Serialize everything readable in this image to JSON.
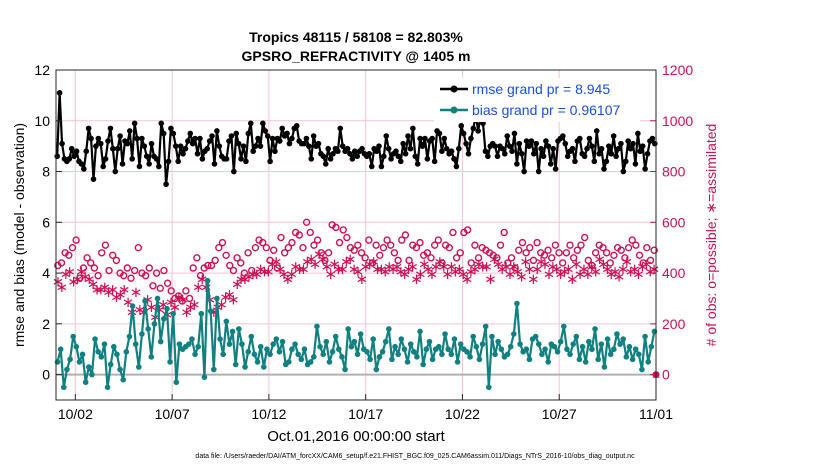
{
  "chart_data": {
    "type": "line",
    "title": "Tropics 48115 / 58108 = 82.803%",
    "subtitle": "GPSRO_REFRACTIVITY @ 1405 m",
    "xlabel": "Oct.01,2016 00:00:00 start",
    "ylabel": "rmse and bias (model - observation)",
    "ylabel_right": "# of obs: o=possible; ∗=assimilated",
    "xlim": [
      0,
      31
    ],
    "ylim": [
      -1,
      12
    ],
    "ylim_right": [
      -100,
      1200
    ],
    "yticks": [
      0,
      2,
      4,
      6,
      8,
      10,
      12
    ],
    "yticks_right": [
      0,
      200,
      400,
      600,
      800,
      1000,
      1200
    ],
    "xticks": [
      {
        "value": 1,
        "label": "10/02"
      },
      {
        "value": 6,
        "label": "10/07"
      },
      {
        "value": 11,
        "label": "10/12"
      },
      {
        "value": 16,
        "label": "10/17"
      },
      {
        "value": 21,
        "label": "10/22"
      },
      {
        "value": 26,
        "label": "10/27"
      },
      {
        "value": 31,
        "label": "11/01"
      }
    ],
    "step": 0.25,
    "series": [
      {
        "name": "rmse",
        "legend": "rmse grand pr = 8.945",
        "color": "#000000",
        "axis": "left",
        "values": [
          8.6,
          11.1,
          9.1,
          8.5,
          8.4,
          8.5,
          8.9,
          8.6,
          8.8,
          8.4,
          8.3,
          8.1,
          8.8,
          9.7,
          9.3,
          7.7,
          9.0,
          9.3,
          9.1,
          8.2,
          8.5,
          9.2,
          9.7,
          8.9,
          8.0,
          8.9,
          9.4,
          8.3,
          9.2,
          9.1,
          9.6,
          8.5,
          9.9,
          9.3,
          8.2,
          9.3,
          9.0,
          8.6,
          8.3,
          9.1,
          8.6,
          8.5,
          8.2,
          9.9,
          9.5,
          7.5,
          8.4,
          9.7,
          9.5,
          9.0,
          8.4,
          9.0,
          8.7,
          8.9,
          9.2,
          9.5,
          9.1,
          9.3,
          8.7,
          9.3,
          8.5,
          8.8,
          8.9,
          9.2,
          9.4,
          8.3,
          9.6,
          9.0,
          8.6,
          8.5,
          8.5,
          9.2,
          9.4,
          8.0,
          9.5,
          9.1,
          8.5,
          9.0,
          8.4,
          9.5,
          9.9,
          8.8,
          9.0,
          9.3,
          9.0,
          9.9,
          9.6,
          9.4,
          8.4,
          9.3,
          8.8,
          9.3,
          9.2,
          9.7,
          9.4,
          9.5,
          9.1,
          9.3,
          9.7,
          9.8,
          9.2,
          9.1,
          9.1,
          9.3,
          9.0,
          8.5,
          9.4,
          9.0,
          9.1,
          8.7,
          8.6,
          8.3,
          8.9,
          8.5,
          8.7,
          8.9,
          8.8,
          9.7,
          9.0,
          8.8,
          8.9,
          8.7,
          8.5,
          8.8,
          8.6,
          8.8,
          8.9,
          8.7,
          8.6,
          8.7,
          8.2,
          8.9,
          8.8,
          9.0,
          8.2,
          8.6,
          9.4,
          8.9,
          8.5,
          8.7,
          8.8,
          8.6,
          8.4,
          9.1,
          8.7,
          9.4,
          8.9,
          9.7,
          8.6,
          8.3,
          9.3,
          9.0,
          9.3,
          8.5,
          9.2,
          9.3,
          8.4,
          9.6,
          9.5,
          8.8,
          9.3,
          8.9,
          8.7,
          8.8,
          8.5,
          8.2,
          8.9,
          9.8,
          9.5,
          9.1,
          8.7,
          9.3,
          9.7,
          10.2,
          9.6,
          10.2,
          9.9,
          8.8,
          8.6,
          9.0,
          9.1,
          9.0,
          8.6,
          9.0,
          8.9,
          8.7,
          9.4,
          9.0,
          8.8,
          9.5,
          8.3,
          9.1,
          8.7,
          8.0,
          9.2,
          9.0,
          9.2,
          8.7,
          9.1,
          8.0,
          8.9,
          8.6,
          9.2,
          9.0,
          8.3,
          8.9,
          8.1,
          9.2,
          9.3,
          9.4,
          9.1,
          8.6,
          8.8,
          8.9,
          8.4,
          9.2,
          9.3,
          8.7,
          8.6,
          8.9,
          9.3,
          9.0,
          8.4,
          9.6,
          8.7,
          8.9,
          8.1,
          8.4,
          9.0,
          8.7,
          9.4,
          8.6,
          8.9,
          9.1,
          8.0,
          8.4,
          9.2,
          8.9,
          9.1,
          8.3,
          9.5,
          8.8,
          9.0,
          8.1,
          8.7,
          9.2,
          9.3,
          9.1
        ]
      },
      {
        "name": "bias",
        "legend": "bias grand pr = 0.96107",
        "color": "#108080",
        "axis": "left",
        "values": [
          0.5,
          1.0,
          -0.5,
          0.2,
          0.6,
          1.5,
          1.1,
          0.5,
          0.8,
          -0.3,
          0.3,
          0.0,
          1.4,
          0.9,
          0.7,
          1.2,
          -0.5,
          0.4,
          1.1,
          0.8,
          0.2,
          -0.2,
          0.9,
          1.5,
          2.7,
          1.2,
          0.3,
          1.6,
          2.9,
          1.8,
          0.7,
          2.0,
          3.0,
          1.3,
          2.2,
          2.6,
          0.5,
          2.4,
          -0.3,
          1.2,
          1.0,
          1.1,
          1.2,
          1.4,
          0.8,
          1.1,
          2.4,
          -0.1,
          3.7,
          2.5,
          0.2,
          3.0,
          1.4,
          0.8,
          2.1,
          1.2,
          1.7,
          0.4,
          1.8,
          1.2,
          0.3,
          0.9,
          1.5,
          0.8,
          0.5,
          1.1,
          0.3,
          1.0,
          0.8,
          1.2,
          1.4,
          0.9,
          1.3,
          0.4,
          0.5,
          1.0,
          1.2,
          0.8,
          0.6,
          1.0,
          0.4,
          0.5,
          0.7,
          1.9,
          1.1,
          0.8,
          1.3,
          0.5,
          0.9,
          1.5,
          1.0,
          0.7,
          0.2,
          1.8,
          1.1,
          1.3,
          0.8,
          1.6,
          1.0,
          0.9,
          0.6,
          1.4,
          0.2,
          0.7,
          0.9,
          1.3,
          1.8,
          0.6,
          1.1,
          0.8,
          1.4,
          1.0,
          0.5,
          1.2,
          0.9,
          0.7,
          1.7,
          0.4,
          1.0,
          1.3,
          0.6,
          1.0,
          1.1,
          0.8,
          1.6,
          1.0,
          0.8,
          1.4,
          0.5,
          1.2,
          1.0,
          0.9,
          0.7,
          1.5,
          1.1,
          0.6,
          1.2,
          1.9,
          -0.5,
          1.5,
          0.8,
          1.3,
          1.0,
          0.7,
          0.8,
          1.1,
          1.6,
          2.8,
          1.2,
          0.9,
          1.0,
          0.6,
          1.4,
          1.5,
          1.2,
          0.8,
          1.0,
          0.5,
          1.2,
          1.1,
          0.9,
          1.3,
          1.9,
          1.0,
          0.8,
          1.2,
          1.5,
          0.6,
          1.1,
          0.5,
          1.3,
          1.0,
          1.8,
          0.6,
          1.2,
          0.3,
          1.4,
          0.8,
          1.0,
          1.6,
          1.2,
          1.4,
          0.7,
          1.1,
          0.6,
          1.0,
          0.8,
          0.2,
          1.5,
          0.5,
          1.1,
          1.7
        ]
      },
      {
        "name": "possible",
        "legend": "",
        "color": "#cc1155",
        "axis": "right",
        "marker": "o",
        "values": [
          430,
          440,
          480,
          470,
          500,
          530,
          380,
          420,
          460,
          440,
          420,
          390,
          480,
          510,
          410,
          470,
          450,
          400,
          390,
          420,
          380,
          410,
          500,
          400,
          390,
          420,
          350,
          400,
          340,
          410,
          360,
          330,
          300,
          310,
          290,
          330,
          300,
          420,
          460,
          390,
          420,
          430,
          430,
          450,
          500,
          520,
          470,
          430,
          410,
          460,
          440,
          400,
          480,
          410,
          500,
          530,
          520,
          500,
          450,
          490,
          420,
          540,
          480,
          500,
          520,
          560,
          550,
          500,
          600,
          560,
          510,
          530,
          480,
          450,
          480,
          590,
          580,
          520,
          570,
          540,
          500,
          490,
          510,
          480,
          460,
          530,
          440,
          510,
          470,
          500,
          530,
          510,
          480,
          450,
          530,
          550,
          450,
          510,
          500,
          520,
          470,
          480,
          460,
          510,
          530,
          440,
          510,
          500,
          560,
          460,
          480,
          560,
          570,
          440,
          510,
          460,
          500,
          490,
          480,
          470,
          460,
          510,
          560,
          440,
          460,
          420,
          490,
          520,
          480,
          500,
          450,
          520,
          480,
          470,
          490,
          460,
          510,
          480,
          440,
          480,
          510,
          460,
          490,
          510,
          540,
          450,
          430,
          480,
          510,
          500,
          480,
          440,
          470,
          500,
          490,
          460,
          500,
          530,
          510,
          470,
          440,
          500,
          450,
          490
        ]
      },
      {
        "name": "assimilated",
        "legend": "",
        "color": "#cc1155",
        "axis": "right",
        "marker": "*",
        "values": [
          370,
          350,
          400,
          410,
          370,
          380,
          410,
          390,
          380,
          360,
          340,
          340,
          350,
          330,
          340,
          310,
          320,
          340,
          290,
          250,
          330,
          260,
          250,
          300,
          270,
          230,
          260,
          280,
          240,
          290,
          270,
          310,
          300,
          250,
          270,
          280,
          350,
          380,
          350,
          300,
          250,
          270,
          280,
          310,
          320,
          300,
          360,
          380,
          380,
          390,
          400,
          400,
          420,
          410,
          410,
          440,
          450,
          420,
          400,
          380,
          400,
          430,
          420,
          420,
          450,
          460,
          440,
          480,
          460,
          430,
          400,
          440,
          420,
          420,
          450,
          460,
          420,
          410,
          380,
          430,
          440,
          450,
          420,
          420,
          410,
          430,
          420,
          430,
          410,
          400,
          420,
          430,
          380,
          400,
          440,
          420,
          400,
          430,
          450,
          430,
          400,
          430,
          410,
          420,
          400,
          380,
          410,
          420,
          440,
          430,
          430,
          380,
          460,
          440,
          420,
          430,
          400,
          430,
          410,
          390,
          450,
          420,
          380,
          420,
          450,
          440,
          400,
          430,
          420,
          400,
          410,
          420,
          380,
          440,
          400,
          420,
          400,
          430,
          410,
          460,
          440,
          420,
          400,
          410,
          390,
          420,
          450,
          410,
          420,
          400,
          430,
          440,
          410,
          420
        ]
      }
    ],
    "final_marker": {
      "x": 31,
      "value": 0,
      "axis": "right"
    },
    "zero_line": 0
  },
  "footer": "data file: /Users/raeder/DAI/ATM_forcXX/CAM6_setup/f.e21.FHIST_BGC.f09_025.CAM6assim.011/Diags_NTrS_2016-10/obs_diag_output.nc"
}
